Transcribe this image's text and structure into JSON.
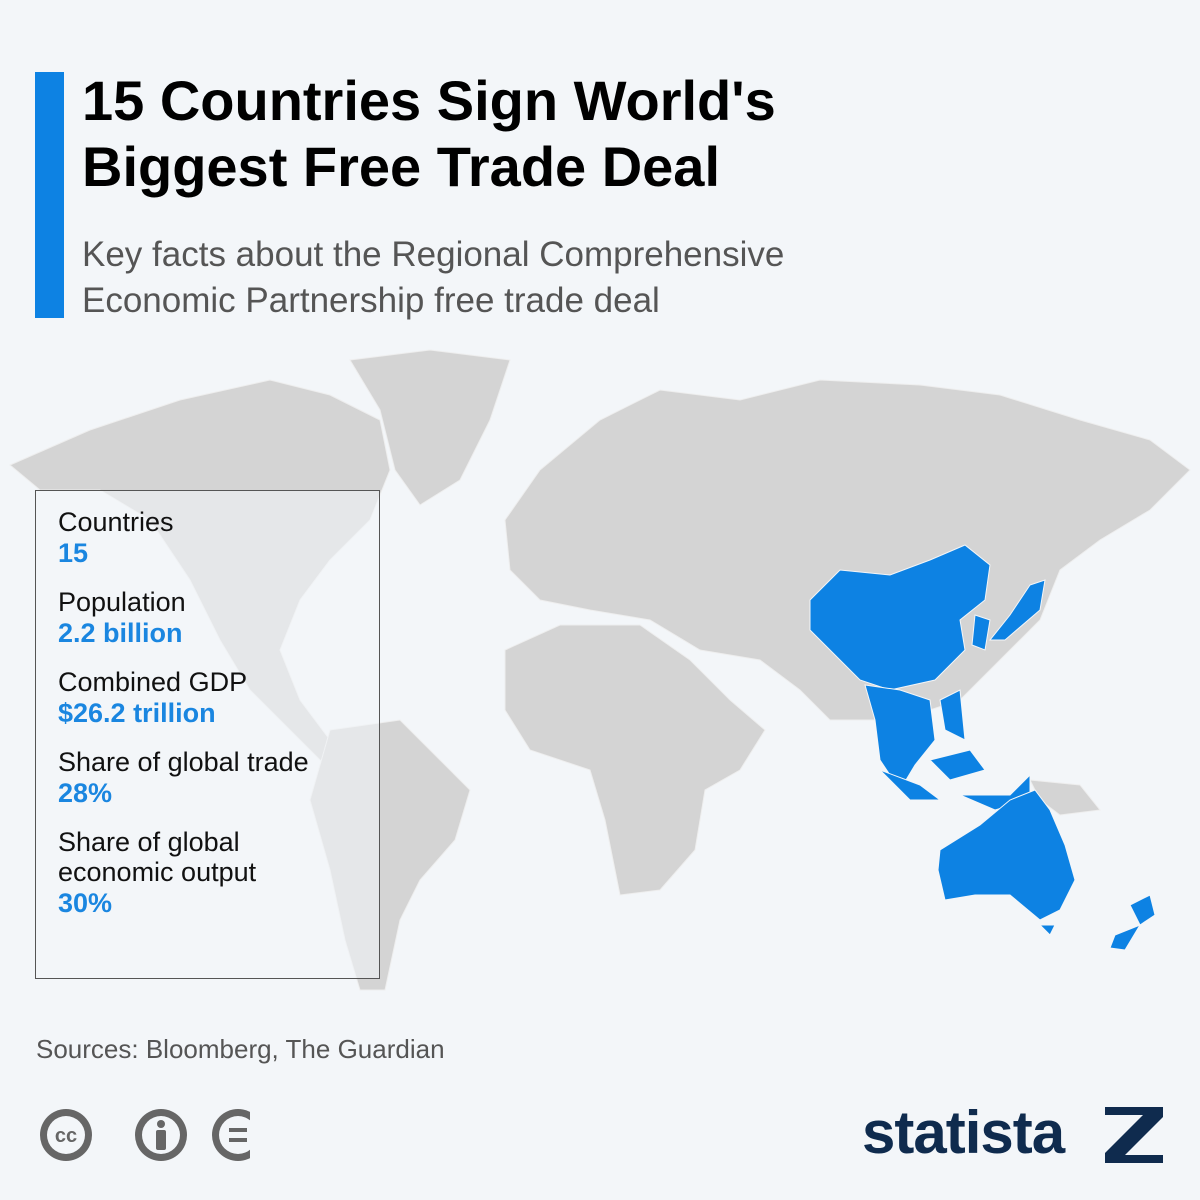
{
  "header": {
    "title": "15 Countries Sign World's Biggest Free Trade Deal",
    "subtitle": "Key facts about the Regional Comprehensive Economic Partnership free trade deal"
  },
  "facts": [
    {
      "label": "Countries",
      "value": "15"
    },
    {
      "label": "Population",
      "value": "2.2 billion"
    },
    {
      "label": "Combined GDP",
      "value": "$26.2 trillion"
    },
    {
      "label": "Share of global trade",
      "value": "28%"
    },
    {
      "label": "Share of global economic output",
      "value": "30%"
    }
  ],
  "footer": {
    "source": "Sources: Bloomberg, The Guardian",
    "license_label": "cc",
    "brand": "statista"
  }
}
